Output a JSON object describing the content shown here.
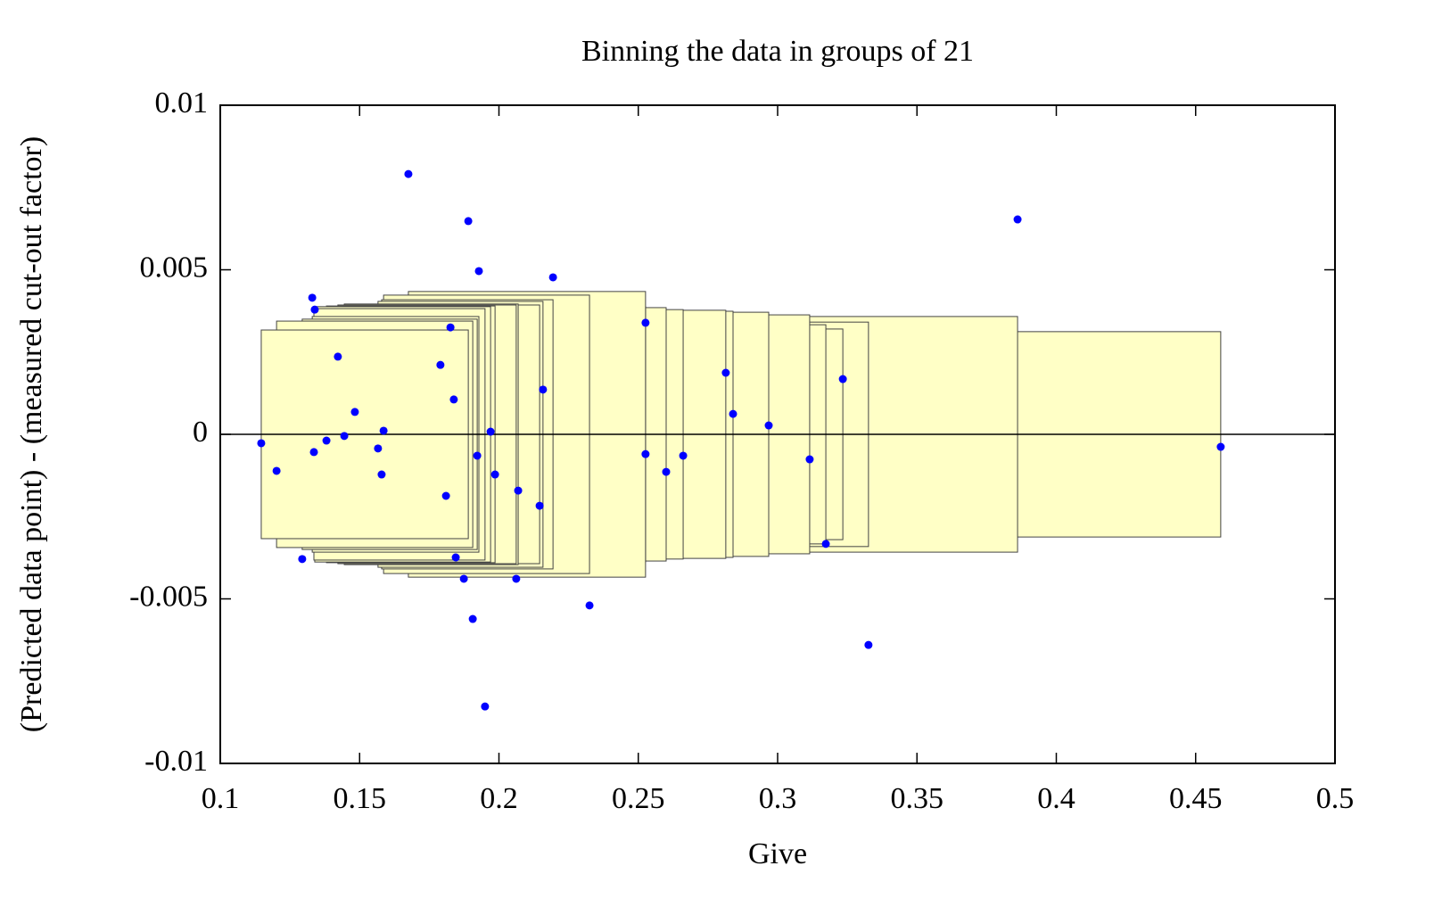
{
  "chart_data": {
    "type": "scatter",
    "title": "Binning the data in groups of 21",
    "xlabel": "Give",
    "ylabel": "(Predicted data point) - (measured cut-out factor)",
    "xlim": [
      0.1,
      0.5
    ],
    "xticks": [
      0.1,
      0.15,
      0.2,
      0.25,
      0.3,
      0.35,
      0.4,
      0.45,
      0.5
    ],
    "ylim": [
      -0.01,
      0.01
    ],
    "yticks": [
      -0.01,
      -0.005,
      0,
      0.005,
      0.01
    ],
    "reference_line": 0,
    "series": [
      {
        "color": "#0000ff",
        "x": [
          0.1147,
          0.1202,
          0.1294,
          0.133,
          0.1336,
          0.1339,
          0.1381,
          0.1422,
          0.1445,
          0.1483,
          0.1566,
          0.1579,
          0.1586,
          0.1675,
          0.179,
          0.181,
          0.1826,
          0.1838,
          0.1845,
          0.1874,
          0.189,
          0.1906,
          0.1922,
          0.1928,
          0.195,
          0.197,
          0.1986,
          0.2062,
          0.2069,
          0.2146,
          0.2158,
          0.2194,
          0.2325,
          0.2526,
          0.2526,
          0.26,
          0.2661,
          0.2814,
          0.284,
          0.2968,
          0.3115,
          0.3173,
          0.3234,
          0.3326,
          0.3861,
          0.459
        ],
        "values": [
          -0.00027,
          -0.00111,
          -0.00379,
          0.00415,
          -0.00054,
          0.00379,
          -0.00019,
          0.00236,
          -5e-05,
          0.00068,
          -0.00043,
          -0.00122,
          0.00011,
          0.00791,
          0.00211,
          -0.00187,
          0.00325,
          0.00106,
          -0.00374,
          -0.00439,
          0.00648,
          -0.00561,
          -0.00065,
          0.00496,
          -0.00827,
          8e-05,
          -0.00122,
          -0.00439,
          -0.00171,
          -0.00217,
          0.00136,
          0.00477,
          -0.0052,
          0.00339,
          -0.0006,
          -0.00114,
          -0.00065,
          0.00187,
          0.00062,
          0.00027,
          -0.00076,
          -0.00333,
          0.00168,
          -0.0064,
          0.00653,
          -0.00038
        ]
      }
    ],
    "boxes": {
      "color": "#ffffc6",
      "x0": [
        0.1147,
        0.1202,
        0.1294,
        0.133,
        0.1336,
        0.1339,
        0.1381,
        0.1422,
        0.1445,
        0.1483,
        0.1566,
        0.1579,
        0.1586,
        0.1675,
        0.179,
        0.181,
        0.1826,
        0.1838,
        0.1845,
        0.1874,
        0.189,
        0.1906,
        0.1922,
        0.1928,
        0.195,
        0.197
      ],
      "x1": [
        0.189,
        0.1906,
        0.1922,
        0.1928,
        0.195,
        0.197,
        0.1986,
        0.2062,
        0.2069,
        0.2146,
        0.2158,
        0.2194,
        0.2325,
        0.2526,
        0.2526,
        0.26,
        0.2661,
        0.2814,
        0.284,
        0.2968,
        0.3115,
        0.3173,
        0.3234,
        0.3326,
        0.3861,
        0.459
      ],
      "half": [
        0.00317,
        0.00344,
        0.0035,
        0.00358,
        0.00382,
        0.00388,
        0.0039,
        0.00393,
        0.00396,
        0.00393,
        0.00404,
        0.00409,
        0.00423,
        0.00434,
        0.00388,
        0.00385,
        0.00379,
        0.00377,
        0.00374,
        0.00371,
        0.00363,
        0.00333,
        0.0032,
        0.00341,
        0.00358,
        0.00312
      ]
    }
  }
}
